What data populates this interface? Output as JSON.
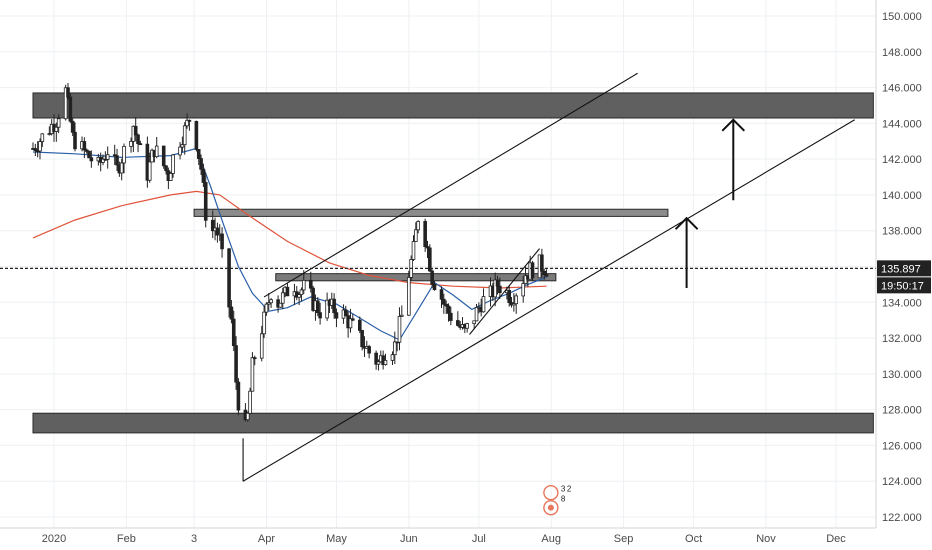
{
  "chart_data": {
    "type": "candlestick",
    "title": "",
    "xlabel": "",
    "ylabel": "",
    "ylim": [
      121.5,
      151.0
    ],
    "yticks": [
      122,
      124,
      126,
      128,
      130,
      132,
      134,
      136,
      138,
      140,
      142,
      144,
      146,
      148,
      150
    ],
    "ytick_labels": [
      "122.000",
      "124.000",
      "126.000",
      "128.000",
      "130.000",
      "132.000",
      "134.000",
      "136.000",
      "138.000",
      "140.000",
      "142.000",
      "144.000",
      "146.000",
      "148.000",
      "150.000"
    ],
    "x_axis": {
      "start": "2019-12-23",
      "end": "2020-12-17",
      "ticks": [
        {
          "date": "2020-01-01",
          "label": "2020"
        },
        {
          "date": "2020-02-01",
          "label": "Feb"
        },
        {
          "date": "2020-03-01",
          "label": "3"
        },
        {
          "date": "2020-04-01",
          "label": "Apr"
        },
        {
          "date": "2020-05-01",
          "label": "May"
        },
        {
          "date": "2020-06-01",
          "label": "Jun"
        },
        {
          "date": "2020-07-01",
          "label": "Jul"
        },
        {
          "date": "2020-08-01",
          "label": "Aug"
        },
        {
          "date": "2020-09-01",
          "label": "Sep"
        },
        {
          "date": "2020-10-01",
          "label": "Oct"
        },
        {
          "date": "2020-11-01",
          "label": "Nov"
        },
        {
          "date": "2020-12-01",
          "label": "Dec"
        }
      ]
    },
    "price_path": [
      [
        "2019-12-23",
        142.6
      ],
      [
        "2019-12-28",
        143.4
      ],
      [
        "2020-01-02",
        144.2
      ],
      [
        "2020-01-06",
        145.8
      ],
      [
        "2020-01-09",
        143.2
      ],
      [
        "2020-01-14",
        142.4
      ],
      [
        "2020-01-20",
        141.6
      ],
      [
        "2020-01-24",
        142.5
      ],
      [
        "2020-01-28",
        141.4
      ],
      [
        "2020-02-01",
        142.8
      ],
      [
        "2020-02-04",
        143.9
      ],
      [
        "2020-02-07",
        142.4
      ],
      [
        "2020-02-10",
        141.2
      ],
      [
        "2020-02-13",
        142.6
      ],
      [
        "2020-02-16",
        141.9
      ],
      [
        "2020-02-19",
        141.1
      ],
      [
        "2020-02-22",
        142.6
      ],
      [
        "2020-02-26",
        143.6
      ],
      [
        "2020-02-29",
        144.6
      ],
      [
        "2020-03-02",
        143.0
      ],
      [
        "2020-03-04",
        141.5
      ],
      [
        "2020-03-06",
        139.0
      ],
      [
        "2020-03-08",
        137.8
      ],
      [
        "2020-03-10",
        138.2
      ],
      [
        "2020-03-12",
        137.5
      ],
      [
        "2020-03-14",
        135.4
      ],
      [
        "2020-03-17",
        133.0
      ],
      [
        "2020-03-19",
        129.6
      ],
      [
        "2020-03-22",
        126.2
      ],
      [
        "2020-03-24",
        127.6
      ],
      [
        "2020-03-26",
        130.4
      ],
      [
        "2020-03-28",
        131.6
      ],
      [
        "2020-03-31",
        133.0
      ],
      [
        "2020-04-03",
        134.6
      ],
      [
        "2020-04-06",
        134.0
      ],
      [
        "2020-04-09",
        134.4
      ],
      [
        "2020-04-12",
        135.2
      ],
      [
        "2020-04-15",
        134.6
      ],
      [
        "2020-04-18",
        134.9
      ],
      [
        "2020-04-21",
        134.0
      ],
      [
        "2020-04-24",
        133.5
      ],
      [
        "2020-04-27",
        133.8
      ],
      [
        "2020-04-30",
        133.6
      ],
      [
        "2020-05-04",
        133.3
      ],
      [
        "2020-05-07",
        132.8
      ],
      [
        "2020-05-11",
        132.0
      ],
      [
        "2020-05-15",
        131.2
      ],
      [
        "2020-05-19",
        130.6
      ],
      [
        "2020-05-22",
        131.3
      ],
      [
        "2020-05-26",
        131.6
      ],
      [
        "2020-05-29",
        133.2
      ],
      [
        "2020-06-01",
        135.6
      ],
      [
        "2020-06-03",
        136.9
      ],
      [
        "2020-06-05",
        138.8
      ],
      [
        "2020-06-07",
        138.2
      ],
      [
        "2020-06-09",
        137.0
      ],
      [
        "2020-06-11",
        135.4
      ],
      [
        "2020-06-14",
        134.6
      ],
      [
        "2020-06-17",
        133.6
      ],
      [
        "2020-06-21",
        132.9
      ],
      [
        "2020-06-25",
        132.3
      ],
      [
        "2020-06-29",
        133.2
      ],
      [
        "2020-07-02",
        134.0
      ],
      [
        "2020-07-06",
        134.4
      ],
      [
        "2020-07-09",
        135.0
      ],
      [
        "2020-07-12",
        134.7
      ],
      [
        "2020-07-15",
        134.3
      ],
      [
        "2020-07-18",
        134.8
      ],
      [
        "2020-07-21",
        135.6
      ],
      [
        "2020-07-24",
        135.9
      ],
      [
        "2020-07-27",
        136.1
      ],
      [
        "2020-07-30",
        135.9
      ]
    ],
    "ma_blue": [
      [
        "2019-12-23",
        142.4
      ],
      [
        "2020-01-10",
        142.3
      ],
      [
        "2020-01-30",
        142.1
      ],
      [
        "2020-02-20",
        142.2
      ],
      [
        "2020-03-02",
        142.6
      ],
      [
        "2020-03-08",
        140.5
      ],
      [
        "2020-03-14",
        138.2
      ],
      [
        "2020-03-20",
        136.0
      ],
      [
        "2020-03-26",
        134.5
      ],
      [
        "2020-04-02",
        133.5
      ],
      [
        "2020-04-10",
        133.7
      ],
      [
        "2020-04-20",
        134.3
      ],
      [
        "2020-05-01",
        133.9
      ],
      [
        "2020-05-10",
        133.2
      ],
      [
        "2020-05-20",
        132.4
      ],
      [
        "2020-05-28",
        131.9
      ],
      [
        "2020-06-05",
        133.6
      ],
      [
        "2020-06-12",
        135.1
      ],
      [
        "2020-06-20",
        134.4
      ],
      [
        "2020-06-28",
        133.6
      ],
      [
        "2020-07-06",
        134.1
      ],
      [
        "2020-07-14",
        134.5
      ],
      [
        "2020-07-22",
        135.0
      ],
      [
        "2020-07-30",
        135.4
      ]
    ],
    "ma_red": [
      [
        "2019-12-23",
        137.6
      ],
      [
        "2020-01-10",
        138.6
      ],
      [
        "2020-01-30",
        139.4
      ],
      [
        "2020-02-20",
        140.0
      ],
      [
        "2020-03-02",
        140.2
      ],
      [
        "2020-03-12",
        140.0
      ],
      [
        "2020-03-25",
        138.8
      ],
      [
        "2020-04-10",
        137.4
      ],
      [
        "2020-04-28",
        136.2
      ],
      [
        "2020-05-15",
        135.5
      ],
      [
        "2020-06-01",
        135.1
      ],
      [
        "2020-06-20",
        134.9
      ],
      [
        "2020-07-10",
        134.8
      ],
      [
        "2020-07-30",
        134.9
      ]
    ],
    "zones": [
      {
        "from": "2019-12-23",
        "to": "2020-12-17",
        "low": 144.3,
        "high": 145.7,
        "color": "#606060"
      },
      {
        "from": "2019-12-23",
        "to": "2020-12-17",
        "low": 126.7,
        "high": 127.8,
        "color": "#606060"
      },
      {
        "from": "2020-03-01",
        "to": "2020-09-20",
        "low": 138.8,
        "high": 139.2,
        "color": "#8c8c8c"
      },
      {
        "from": "2020-04-05",
        "to": "2020-08-03",
        "low": 135.2,
        "high": 135.6,
        "color": "#7a7a7a"
      }
    ],
    "trend_lines": [
      {
        "x1": "2020-03-22",
        "y1": 124.0,
        "x2": "2020-12-09",
        "y2": 144.2
      },
      {
        "x1": "2020-03-31",
        "y1": 134.3,
        "x2": "2020-09-07",
        "y2": 146.8
      },
      {
        "x1": "2020-06-27",
        "y1": 132.2,
        "x2": "2020-07-27",
        "y2": 137.0
      },
      {
        "x1": "2020-03-22",
        "y1": 124.0,
        "x2": "2020-03-22",
        "y2": 126.4
      }
    ],
    "arrows": [
      {
        "x": "2020-10-18",
        "from": 139.7,
        "to": 144.2
      },
      {
        "x": "2020-09-28",
        "from": 134.8,
        "to": 138.7
      }
    ],
    "current_price": {
      "value": 135.897,
      "label": "135.897",
      "countdown": "19:50:17"
    },
    "colors": {
      "up": "#ffffff",
      "down": "#222222",
      "wick": "#222222",
      "ma_blue": "#2a5fa8",
      "ma_red": "#e0533a",
      "trend": "#111111",
      "grid": "#eef0f3",
      "axis_text": "#4a4a4a",
      "badge": "#222222",
      "event_marker": "#e9765a"
    },
    "grid": true,
    "event_marker": {
      "date": "2020-07-31",
      "price": 122.8,
      "badge_values": [
        "3",
        "2",
        "8"
      ]
    }
  }
}
